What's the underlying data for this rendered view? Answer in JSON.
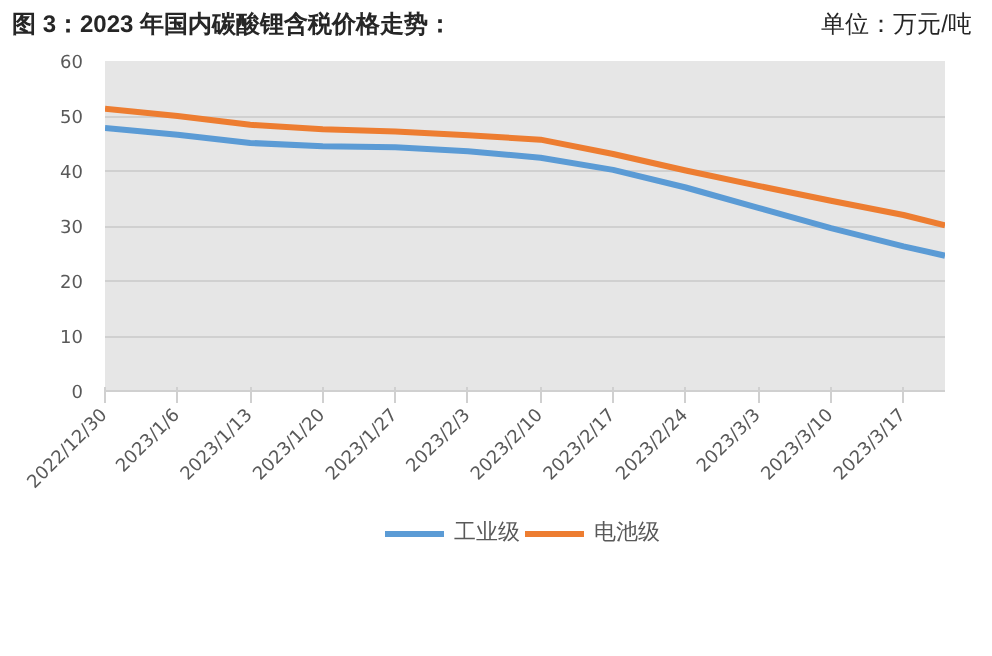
{
  "chart_data": {
    "type": "line",
    "title": "图 3：2023 年国内碳酸锂含税价格走势：",
    "subtitle": "单位：万元/吨",
    "x": [
      "2022-12-30",
      "2023-01-06",
      "2023-01-13",
      "2023-01-20",
      "2023-01-27",
      "2023-02-03",
      "2023-02-10",
      "2023-02-17",
      "2023-02-24",
      "2023-03-03",
      "2023-03-10",
      "2023-03-17",
      "2023-03-21"
    ],
    "series": [
      {
        "name": "工业级",
        "color": "#5b9bd5",
        "values": [
          47.8,
          46.6,
          45.1,
          44.5,
          44.3,
          43.6,
          42.4,
          40.2,
          37.0,
          33.3,
          29.6,
          26.3,
          24.6
        ]
      },
      {
        "name": "电池级",
        "color": "#ed7d31",
        "values": [
          51.3,
          50.0,
          48.4,
          47.6,
          47.2,
          46.5,
          45.7,
          43.1,
          40.1,
          37.3,
          34.6,
          32.0,
          30.1
        ]
      }
    ],
    "xlim": [
      "2022-12-30",
      "2023-03-21"
    ],
    "xticks": [
      {
        "value": "2022-12-30",
        "label": "2022/12/30"
      },
      {
        "value": "2023-01-06",
        "label": "2023/1/6"
      },
      {
        "value": "2023-01-13",
        "label": "2023/1/13"
      },
      {
        "value": "2023-01-20",
        "label": "2023/1/20"
      },
      {
        "value": "2023-01-27",
        "label": "2023/1/27"
      },
      {
        "value": "2023-02-03",
        "label": "2023/2/3"
      },
      {
        "value": "2023-02-10",
        "label": "2023/2/10"
      },
      {
        "value": "2023-02-17",
        "label": "2023/2/17"
      },
      {
        "value": "2023-02-24",
        "label": "2023/2/24"
      },
      {
        "value": "2023-03-03",
        "label": "2023/3/3"
      },
      {
        "value": "2023-03-10",
        "label": "2023/3/10"
      },
      {
        "value": "2023-03-17",
        "label": "2023/3/17"
      }
    ],
    "ylim": [
      0,
      60
    ],
    "yticks": [
      0,
      10,
      20,
      30,
      40,
      50,
      60
    ],
    "grid": "y",
    "legend": "bottom",
    "marker": "none",
    "line_style": "solid"
  }
}
